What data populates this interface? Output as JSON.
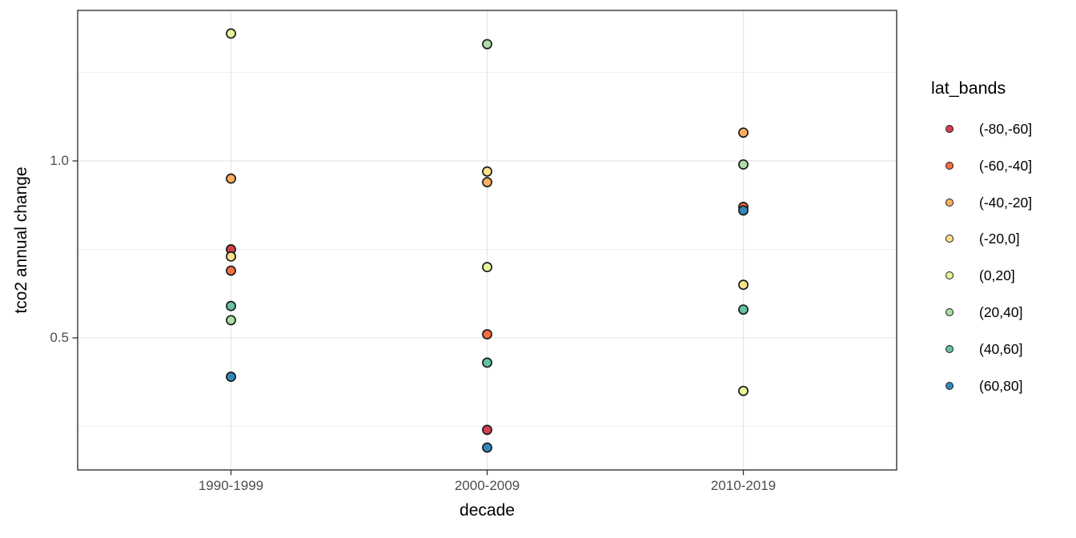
{
  "figure": {
    "background": "#ffffff"
  },
  "chart_data": {
    "type": "scatter",
    "title": "",
    "xlabel": "decade",
    "ylabel": "tco2 annual change",
    "categories": [
      "1990-1999",
      "2000-2009",
      "2010-2019"
    ],
    "legend_title": "lat_bands",
    "legend_position": "right",
    "grid": true,
    "point_style": "filled-circle-black-outline",
    "ylim": [
      0.13,
      1.43
    ],
    "y_ticks": [
      {
        "value": 1.0,
        "label": "1.0"
      },
      {
        "value": 0.5,
        "label": "0.5"
      }
    ],
    "y_minor_gridlines": [
      0.25,
      0.75,
      1.25
    ],
    "series": [
      {
        "name": "(-80,-60]",
        "color": "#D53E4F",
        "values": [
          0.75,
          0.24,
          null
        ]
      },
      {
        "name": "(-60,-40]",
        "color": "#F46D43",
        "values": [
          0.69,
          0.51,
          0.87
        ]
      },
      {
        "name": "(-40,-20]",
        "color": "#FDAE61",
        "values": [
          0.95,
          0.94,
          1.08
        ]
      },
      {
        "name": "(-20,0]",
        "color": "#FEE08B",
        "values": [
          0.73,
          0.97,
          0.65
        ]
      },
      {
        "name": "(0,20]",
        "color": "#E6F598",
        "values": [
          1.36,
          0.7,
          0.35
        ]
      },
      {
        "name": "(20,40]",
        "color": "#ABDDA4",
        "values": [
          0.55,
          1.33,
          0.99
        ]
      },
      {
        "name": "(40,60]",
        "color": "#66C2A5",
        "values": [
          0.59,
          0.43,
          0.58
        ]
      },
      {
        "name": "(60,80]",
        "color": "#3288BD",
        "values": [
          0.39,
          0.19,
          0.86
        ]
      }
    ]
  }
}
